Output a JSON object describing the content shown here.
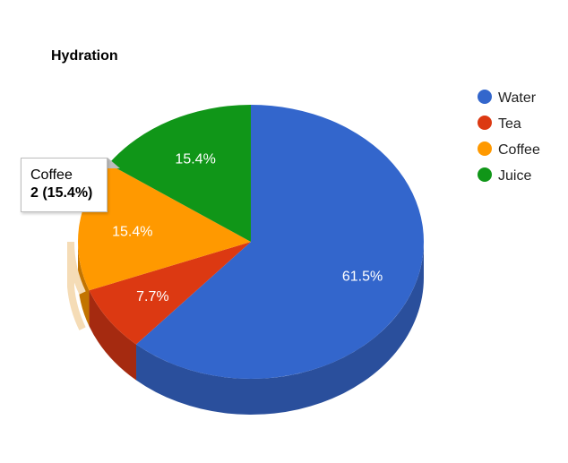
{
  "chart_data": {
    "type": "pie",
    "title": "Hydration",
    "categories": [
      "Water",
      "Tea",
      "Coffee",
      "Juice"
    ],
    "values": [
      8,
      1,
      2,
      2
    ],
    "percent_labels": [
      "61.5%",
      "7.7%",
      "15.4%",
      "15.4%"
    ],
    "colors": [
      "#3366cc",
      "#dc3912",
      "#ff9900",
      "#109618"
    ],
    "side_colors": [
      "#2a4f9c",
      "#a52a10",
      "#c27400",
      "#0c6d12"
    ],
    "is_3d": true,
    "legend_position": "right"
  },
  "tooltip": {
    "label": "Coffee",
    "value": "2 (15.4%)"
  }
}
